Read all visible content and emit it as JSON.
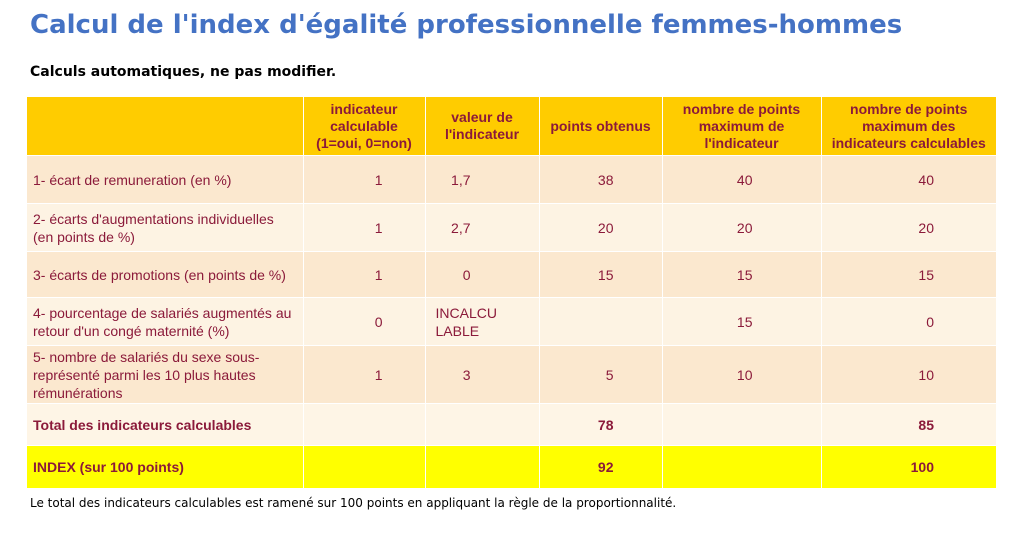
{
  "title": "Calcul de l'index d'égalité professionnelle femmes-hommes",
  "subtitle": "Calculs automatiques, ne pas modifier.",
  "table": {
    "headers": [
      "",
      "indicateur calculable (1=oui, 0=non)",
      "valeur de l'indicateur",
      "points obtenus",
      "nombre de points maximum de l'indicateur",
      "nombre de points maximum des indicateurs calculables"
    ],
    "rows": [
      {
        "label": "1- écart de remuneration (en %)",
        "calculable": "1",
        "valeur": "1,7",
        "points": "38",
        "max_indicateur": "40",
        "max_calculables": "40"
      },
      {
        "label": "2- écarts d'augmentations individuelles (en points de %)",
        "calculable": "1",
        "valeur": "2,7",
        "points": "20",
        "max_indicateur": "20",
        "max_calculables": "20"
      },
      {
        "label": "3- écarts de promotions (en points de %)",
        "calculable": "1",
        "valeur": "0",
        "points": "15",
        "max_indicateur": "15",
        "max_calculables": "15"
      },
      {
        "label": "4- pourcentage de salariés augmentés au retour d'un congé maternité (%)",
        "calculable": "0",
        "valeur": "INCALCULABLE",
        "points": "",
        "max_indicateur": "15",
        "max_calculables": "0"
      },
      {
        "label": "5- nombre de salariés du sexe sous-représenté parmi les 10 plus hautes rémunérations",
        "calculable": "1",
        "valeur": "3",
        "points": "5",
        "max_indicateur": "10",
        "max_calculables": "10"
      }
    ],
    "total": {
      "label": "Total des indicateurs calculables",
      "points": "78",
      "max_calculables": "85"
    },
    "index": {
      "label": "INDEX (sur 100 points)",
      "points": "92",
      "max_calculables": "100"
    }
  },
  "footnote": "Le total des indicateurs calculables est ramené sur 100 points en appliquant la règle de la proportionnalité.",
  "colors": {
    "title": "#4472c4",
    "header_bg": "#ffcc00",
    "text": "#8b1a3a",
    "index_bg": "#ffff00"
  }
}
